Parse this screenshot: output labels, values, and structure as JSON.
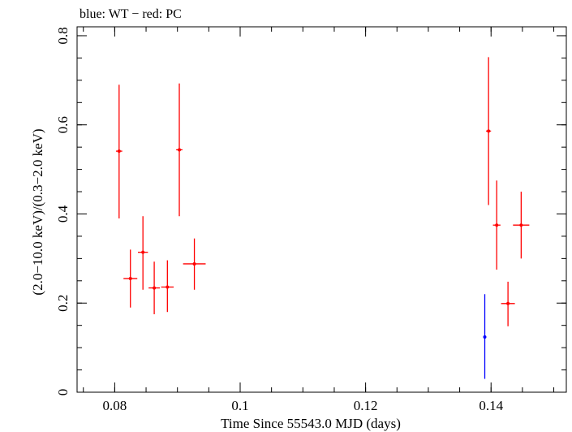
{
  "chart_data": {
    "type": "scatter",
    "title": "blue: WT − red: PC",
    "xlabel": "Time Since 55543.0 MJD (days)",
    "ylabel": "(2.0−10.0 keV)/(0.3−2.0 keV)",
    "xlim": [
      0.074,
      0.152
    ],
    "ylim": [
      0,
      0.82
    ],
    "xticks": [
      {
        "value": 0.08,
        "label": "0.08"
      },
      {
        "value": 0.1,
        "label": "0.1"
      },
      {
        "value": 0.12,
        "label": "0.12"
      },
      {
        "value": 0.14,
        "label": "0.14"
      }
    ],
    "yticks": [
      {
        "value": 0,
        "label": "0"
      },
      {
        "value": 0.2,
        "label": "0.2"
      },
      {
        "value": 0.4,
        "label": "0.4"
      },
      {
        "value": 0.6,
        "label": "0.6"
      },
      {
        "value": 0.8,
        "label": "0.8"
      }
    ],
    "x_minor_step": 0.005,
    "y_minor_step": 0.05,
    "grid": false,
    "legend": "none",
    "series": [
      {
        "color": "#ff0000",
        "points": [
          {
            "x": 0.0807,
            "xerr": 0.0005,
            "y": 0.541,
            "ylo": 0.39,
            "yhi": 0.69
          },
          {
            "x": 0.0825,
            "xerr": 0.0011,
            "y": 0.255,
            "ylo": 0.19,
            "yhi": 0.32
          },
          {
            "x": 0.0845,
            "xerr": 0.0008,
            "y": 0.314,
            "ylo": 0.23,
            "yhi": 0.395
          },
          {
            "x": 0.0863,
            "xerr": 0.0009,
            "y": 0.234,
            "ylo": 0.175,
            "yhi": 0.293
          },
          {
            "x": 0.0884,
            "xerr": 0.001,
            "y": 0.236,
            "ylo": 0.18,
            "yhi": 0.296
          },
          {
            "x": 0.0903,
            "xerr": 0.0005,
            "y": 0.544,
            "ylo": 0.395,
            "yhi": 0.693
          },
          {
            "x": 0.0927,
            "xerr": 0.0018,
            "y": 0.288,
            "ylo": 0.23,
            "yhi": 0.345
          },
          {
            "x": 0.1396,
            "xerr": 0.0004,
            "y": 0.586,
            "ylo": 0.42,
            "yhi": 0.752
          },
          {
            "x": 0.1409,
            "xerr": 0.0006,
            "y": 0.375,
            "ylo": 0.275,
            "yhi": 0.475
          },
          {
            "x": 0.1427,
            "xerr": 0.0011,
            "y": 0.199,
            "ylo": 0.148,
            "yhi": 0.248
          },
          {
            "x": 0.1448,
            "xerr": 0.0013,
            "y": 0.375,
            "ylo": 0.3,
            "yhi": 0.45
          }
        ]
      },
      {
        "color": "#0000ff",
        "points": [
          {
            "x": 0.139,
            "xerr": 0.00015,
            "y": 0.124,
            "ylo": 0.03,
            "yhi": 0.22
          }
        ]
      }
    ]
  }
}
